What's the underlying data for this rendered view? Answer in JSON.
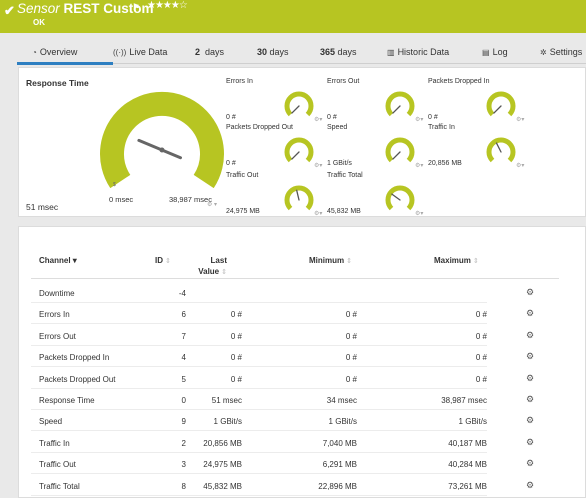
{
  "header": {
    "check_icon": "check-icon",
    "title_prefix": "Sensor",
    "title_name": "REST Custom",
    "flag_icon": "flag-icon",
    "stars": "★★★★☆",
    "status": "OK",
    "color": "#b7c522"
  },
  "tabs": [
    {
      "icon": "◔",
      "label": "Overview"
    },
    {
      "icon": "((·))",
      "label": "Live Data"
    },
    {
      "num": "2",
      "label": "days"
    },
    {
      "num": "30",
      "label": "days"
    },
    {
      "num": "365",
      "label": "days"
    },
    {
      "icon": "▥",
      "label": "Historic Data"
    },
    {
      "icon": "▤",
      "label": "Log"
    },
    {
      "icon": "✲",
      "label": "Settings"
    }
  ],
  "overview": {
    "main_title": "Response Time",
    "main_value": "51 msec",
    "main_min": "0 msec",
    "main_max": "38,987 msec",
    "main_level": 0.0013,
    "gauges": [
      {
        "label": "Errors In",
        "value": "0 #",
        "level": 0.0
      },
      {
        "label": "Errors Out",
        "value": "0 #",
        "level": 0.0
      },
      {
        "label": "Packets Dropped In",
        "value": "0 #",
        "level": 0.0
      },
      {
        "label": "Packets Dropped Out",
        "value": "0 #",
        "level": 0.0
      },
      {
        "label": "Speed",
        "value": "1 GBit/s",
        "level": 0.0
      },
      {
        "label": "Traffic In",
        "value": "20,856 MB",
        "level": 0.4
      },
      {
        "label": "Traffic Out",
        "value": "24,975 MB",
        "level": 0.45
      },
      {
        "label": "Traffic Total",
        "value": "45,832 MB",
        "level": 0.3
      }
    ]
  },
  "table": {
    "headers": {
      "channel": "Channel",
      "id": "ID",
      "last1": "Last",
      "last2": "Value",
      "min": "Minimum",
      "max": "Maximum"
    },
    "rows": [
      {
        "channel": "Downtime",
        "id": "-4",
        "last": "",
        "min": "",
        "max": ""
      },
      {
        "channel": "Errors In",
        "id": "6",
        "last": "0 #",
        "min": "0 #",
        "max": "0 #"
      },
      {
        "channel": "Errors Out",
        "id": "7",
        "last": "0 #",
        "min": "0 #",
        "max": "0 #"
      },
      {
        "channel": "Packets Dropped In",
        "id": "4",
        "last": "0 #",
        "min": "0 #",
        "max": "0 #"
      },
      {
        "channel": "Packets Dropped Out",
        "id": "5",
        "last": "0 #",
        "min": "0 #",
        "max": "0 #"
      },
      {
        "channel": "Response Time",
        "id": "0",
        "last": "51 msec",
        "min": "34 msec",
        "max": "38,987 msec"
      },
      {
        "channel": "Speed",
        "id": "9",
        "last": "1 GBit/s",
        "min": "1 GBit/s",
        "max": "1 GBit/s"
      },
      {
        "channel": "Traffic In",
        "id": "2",
        "last": "20,856 MB",
        "min": "7,040 MB",
        "max": "40,187 MB"
      },
      {
        "channel": "Traffic Out",
        "id": "3",
        "last": "24,975 MB",
        "min": "6,291 MB",
        "max": "40,284 MB"
      },
      {
        "channel": "Traffic Total",
        "id": "8",
        "last": "45,832 MB",
        "min": "22,896 MB",
        "max": "73,261 MB"
      }
    ]
  }
}
